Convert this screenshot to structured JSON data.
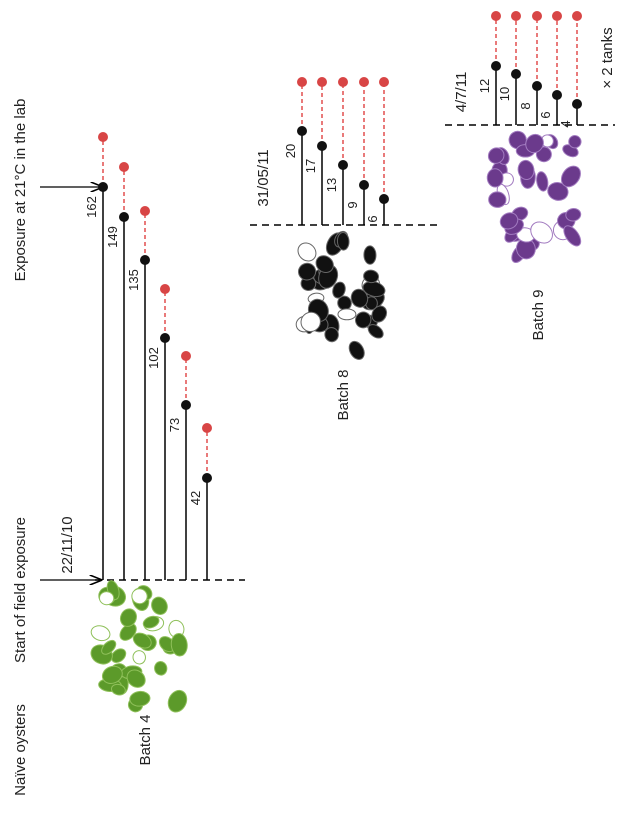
{
  "labels": {
    "naive": "Naïve oysters",
    "start": "Start of field exposure",
    "lab": "Exposure at 21°C in the lab",
    "tanks": "× 2 tanks"
  },
  "batches": [
    {
      "name": "Batch 4",
      "date": "22/11/10",
      "days": [
        162,
        149,
        135,
        102,
        73,
        42
      ]
    },
    {
      "name": "Batch 8",
      "date": "31/05/11",
      "days": [
        20,
        17,
        13,
        9,
        6
      ]
    },
    {
      "name": "Batch 9",
      "date": "4/7/11",
      "days": [
        12,
        10,
        8,
        6,
        4
      ]
    }
  ]
}
